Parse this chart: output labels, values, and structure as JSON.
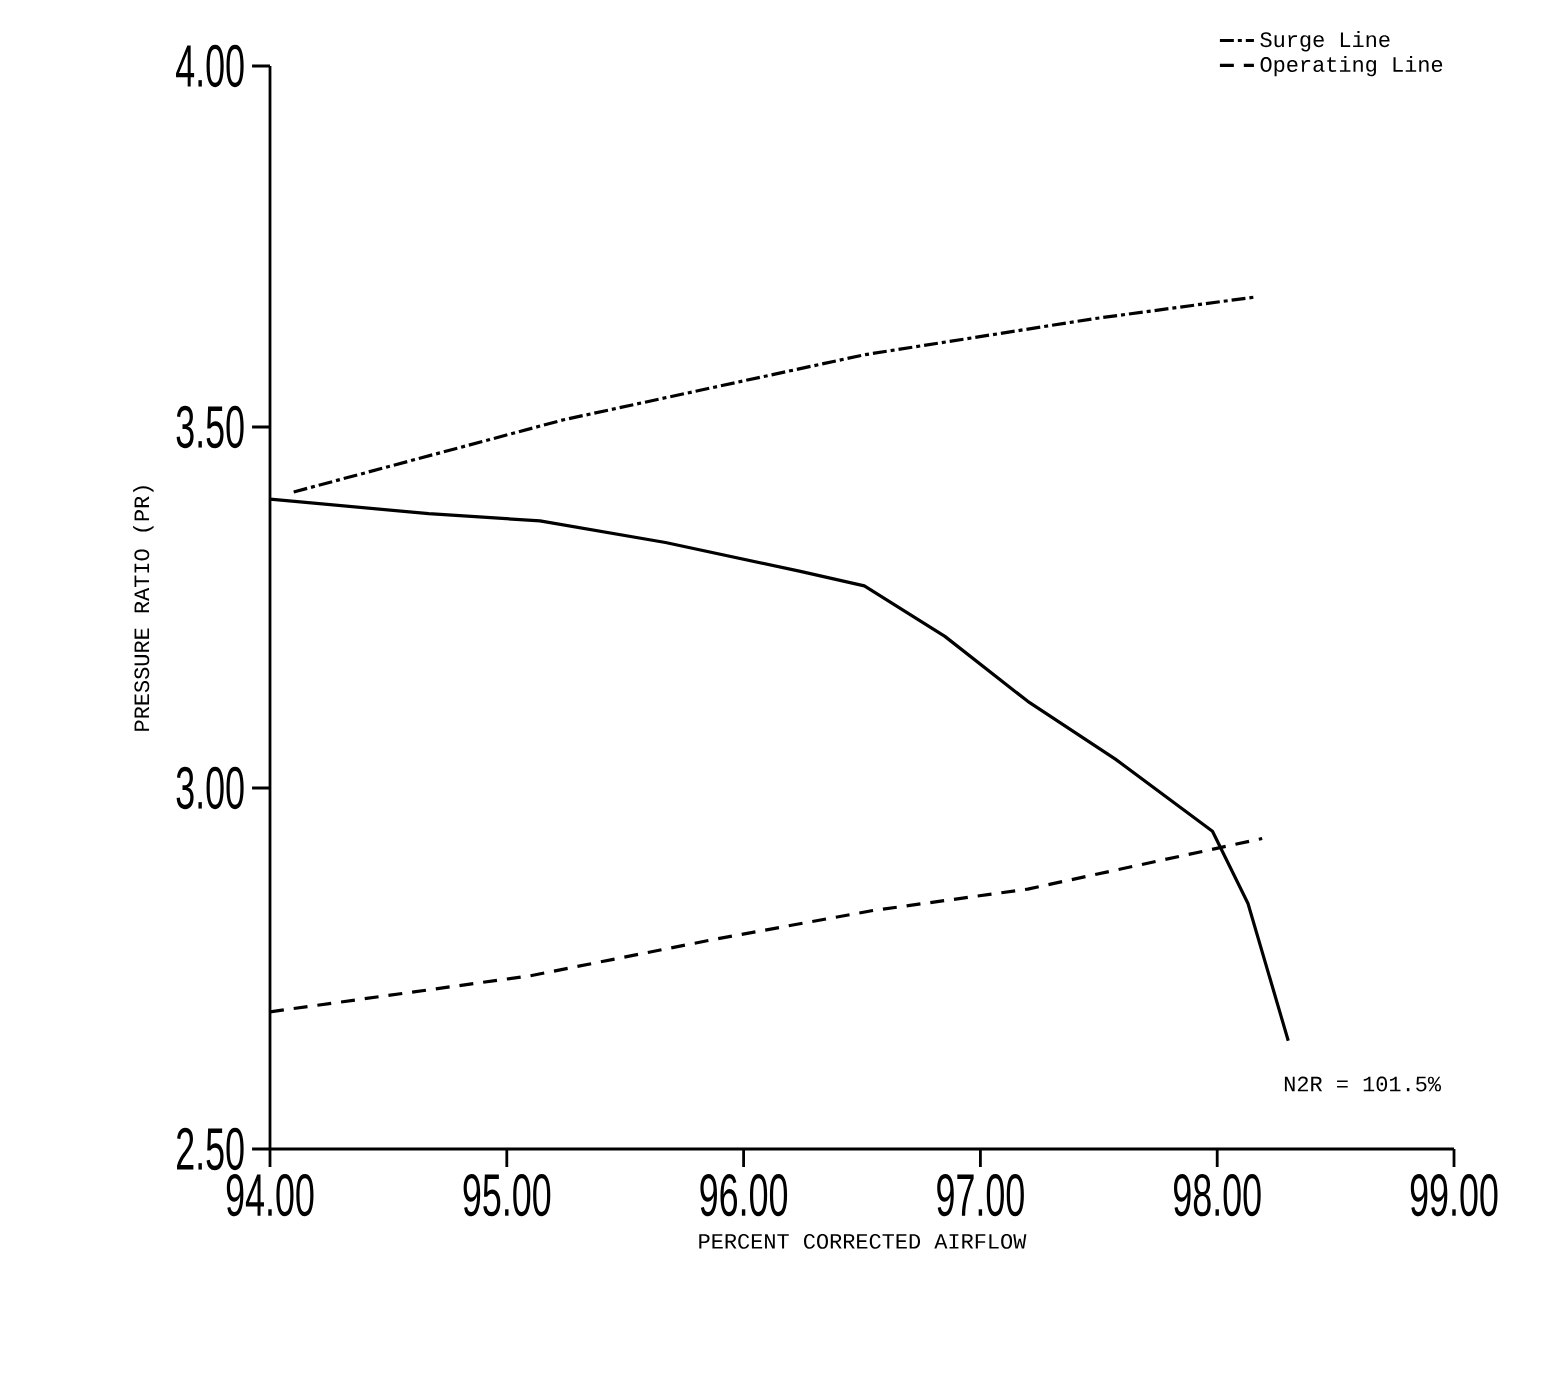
{
  "chart_data": {
    "type": "line",
    "xlabel": "PERCENT CORRECTED AIRFLOW",
    "ylabel": "PRESSURE RATIO (PR)",
    "xlim": [
      94,
      99
    ],
    "ylim": [
      2.5,
      4.0
    ],
    "xticks": [
      {
        "value": 94,
        "label": "94.00"
      },
      {
        "value": 95,
        "label": "95.00"
      },
      {
        "value": 96,
        "label": "96.00"
      },
      {
        "value": 97,
        "label": "97.00"
      },
      {
        "value": 98,
        "label": "98.00"
      },
      {
        "value": 99,
        "label": "99.00"
      }
    ],
    "yticks": [
      {
        "value": 2.5,
        "label": "2.50"
      },
      {
        "value": 3.0,
        "label": "3.00"
      },
      {
        "value": 3.5,
        "label": "3.50"
      },
      {
        "value": 4.0,
        "label": "4.00"
      }
    ],
    "grid": false,
    "legend": "top right",
    "marker": "none",
    "series": [
      {
        "name": "Surge Line",
        "color": "#000000",
        "line_style": "dashdot",
        "x": [
          94.1,
          95.24,
          96.51,
          97.48,
          98.16
        ],
        "values": [
          3.41,
          3.51,
          3.6,
          3.65,
          3.68
        ]
      },
      {
        "name": "Operating Line",
        "color": "#000000",
        "line_style": "dashed",
        "x": [
          94.0,
          95.1,
          95.87,
          96.54,
          97.2,
          98.19
        ],
        "values": [
          2.69,
          2.74,
          2.79,
          2.83,
          2.86,
          2.93
        ]
      },
      {
        "color": "#000000",
        "line_style": "solid",
        "x": [
          94.0,
          94.67,
          95.14,
          95.67,
          96.24,
          96.51,
          96.85,
          97.2,
          97.57,
          97.98,
          98.13,
          98.3
        ],
        "values": [
          3.4,
          3.38,
          3.37,
          3.34,
          3.3,
          3.28,
          3.21,
          3.12,
          3.04,
          2.94,
          2.84,
          2.65
        ]
      }
    ],
    "annotations": [
      "N2R = 101.5%"
    ]
  }
}
